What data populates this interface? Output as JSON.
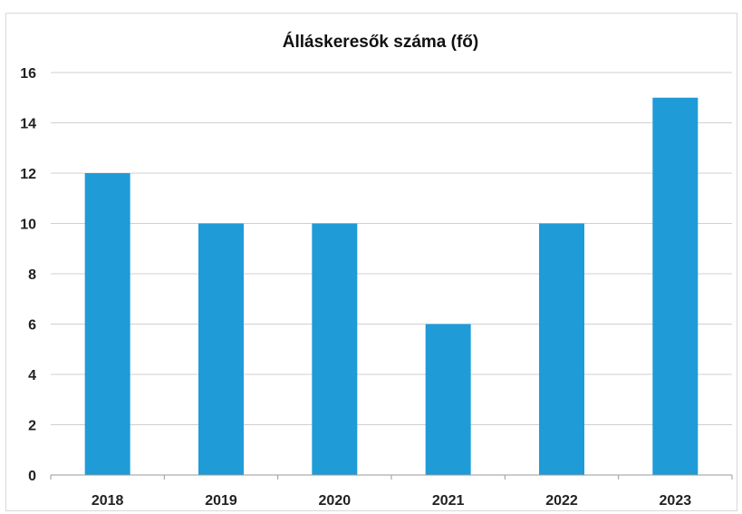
{
  "chart_data": {
    "type": "bar",
    "title": "Álláskeresők száma (fő)",
    "xlabel": "",
    "ylabel": "",
    "categories": [
      "2018",
      "2019",
      "2020",
      "2021",
      "2022",
      "2023"
    ],
    "values": [
      12,
      10,
      10,
      6,
      10,
      15
    ],
    "ylim": [
      0,
      16
    ],
    "yticks": [
      "0",
      "2",
      "4",
      "6",
      "8",
      "10",
      "12",
      "14",
      "16"
    ],
    "grid": true,
    "legend": "none",
    "bar_color": "#1f9bd7"
  }
}
